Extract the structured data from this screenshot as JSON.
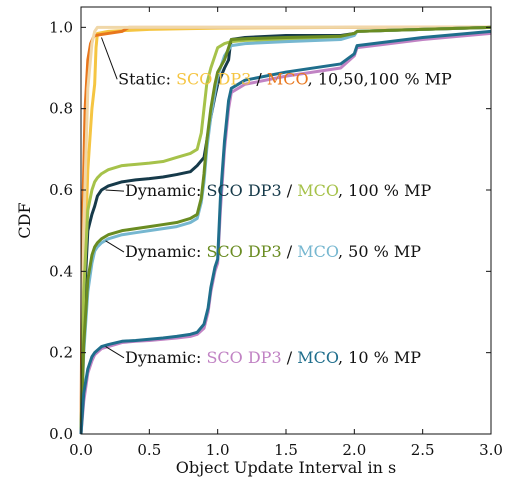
{
  "chart_data": {
    "type": "line",
    "xlabel": "Object Update Interval in s",
    "ylabel": "CDF",
    "xlim": [
      0.0,
      3.0
    ],
    "ylim": [
      0.0,
      1.05
    ],
    "xticks": [
      "0.0",
      "0.5",
      "1.0",
      "1.5",
      "2.0",
      "2.5",
      "3.0"
    ],
    "yticks": [
      "0.0",
      "0.2",
      "0.4",
      "0.6",
      "0.8",
      "1.0"
    ],
    "xtick_values": [
      0.0,
      0.5,
      1.0,
      1.5,
      2.0,
      2.5,
      3.0
    ],
    "ytick_values": [
      0.0,
      0.2,
      0.4,
      0.6,
      0.8,
      1.0
    ],
    "grid": false,
    "series": [
      {
        "key": "static_sco",
        "color": "#f5c542",
        "x": [
          0,
          0.02,
          0.05,
          0.08,
          0.1,
          0.11,
          0.12,
          0.2,
          0.5,
          1.0,
          1.5,
          2.0,
          3.0
        ],
        "y": [
          0.0,
          0.35,
          0.65,
          0.8,
          0.86,
          0.95,
          0.985,
          0.99,
          0.995,
          0.998,
          0.999,
          1.0,
          1.0
        ]
      },
      {
        "key": "static_mco",
        "color": "#e8761c",
        "x": [
          0,
          0.01,
          0.03,
          0.05,
          0.07,
          0.09,
          0.1,
          0.2,
          0.3,
          0.35,
          0.5,
          1.0,
          3.0
        ],
        "y": [
          0.0,
          0.5,
          0.8,
          0.92,
          0.96,
          0.975,
          0.98,
          0.985,
          0.99,
          1.0,
          1.0,
          1.0,
          1.0
        ]
      },
      {
        "key": "static_tan",
        "color": "#f0d7a8",
        "x": [
          0,
          0.02,
          0.05,
          0.08,
          0.1,
          0.12,
          0.5,
          1.0,
          2.0,
          3.0
        ],
        "y": [
          0.0,
          0.5,
          0.85,
          0.96,
          0.99,
          1.0,
          1.0,
          1.0,
          1.0,
          1.0
        ]
      },
      {
        "key": "dyn100_sco",
        "color": "#163a4a",
        "x": [
          0,
          0.02,
          0.05,
          0.08,
          0.1,
          0.12,
          0.15,
          0.2,
          0.3,
          0.4,
          0.5,
          0.6,
          0.7,
          0.8,
          0.85,
          0.9,
          0.92,
          0.95,
          0.98,
          1.0,
          1.05,
          1.08,
          1.09,
          1.1,
          1.2,
          1.5,
          1.9,
          2.0,
          2.02,
          2.5,
          2.9,
          3.0
        ],
        "y": [
          0.0,
          0.3,
          0.5,
          0.54,
          0.56,
          0.585,
          0.6,
          0.61,
          0.62,
          0.625,
          0.628,
          0.632,
          0.638,
          0.645,
          0.66,
          0.68,
          0.72,
          0.78,
          0.83,
          0.86,
          0.9,
          0.92,
          0.95,
          0.97,
          0.975,
          0.98,
          0.98,
          0.985,
          0.99,
          0.995,
          0.999,
          1.0
        ]
      },
      {
        "key": "dyn100_mco",
        "color": "#a6c24a",
        "x": [
          0,
          0.02,
          0.05,
          0.08,
          0.1,
          0.12,
          0.15,
          0.2,
          0.3,
          0.4,
          0.5,
          0.6,
          0.7,
          0.8,
          0.85,
          0.88,
          0.9,
          0.92,
          0.95,
          0.98,
          1.0,
          1.05,
          1.1,
          1.2,
          1.5,
          1.9,
          2.0,
          2.02,
          2.5,
          3.0
        ],
        "y": [
          0.0,
          0.35,
          0.55,
          0.6,
          0.62,
          0.63,
          0.64,
          0.65,
          0.66,
          0.663,
          0.666,
          0.67,
          0.68,
          0.69,
          0.7,
          0.74,
          0.8,
          0.86,
          0.9,
          0.93,
          0.95,
          0.96,
          0.965,
          0.968,
          0.97,
          0.975,
          0.985,
          0.99,
          0.995,
          1.0
        ]
      },
      {
        "key": "dyn50_mco",
        "color": "#76b7d0",
        "x": [
          0,
          0.02,
          0.05,
          0.08,
          0.1,
          0.12,
          0.15,
          0.2,
          0.3,
          0.4,
          0.5,
          0.6,
          0.7,
          0.8,
          0.85,
          0.88,
          0.9,
          0.92,
          0.95,
          0.98,
          1.0,
          1.05,
          1.1,
          1.2,
          1.5,
          1.9,
          2.0,
          2.02,
          2.5,
          3.0
        ],
        "y": [
          0.0,
          0.2,
          0.35,
          0.42,
          0.45,
          0.46,
          0.47,
          0.48,
          0.49,
          0.495,
          0.5,
          0.505,
          0.51,
          0.52,
          0.53,
          0.57,
          0.62,
          0.7,
          0.78,
          0.84,
          0.88,
          0.93,
          0.955,
          0.96,
          0.965,
          0.97,
          0.98,
          0.99,
          0.995,
          1.0
        ]
      },
      {
        "key": "dyn50_sco",
        "color": "#6a8c22",
        "x": [
          0,
          0.02,
          0.05,
          0.08,
          0.1,
          0.12,
          0.15,
          0.2,
          0.3,
          0.4,
          0.5,
          0.6,
          0.7,
          0.8,
          0.85,
          0.88,
          0.9,
          0.92,
          0.95,
          0.98,
          1.0,
          1.05,
          1.1,
          1.2,
          1.5,
          1.9,
          2.0,
          2.02,
          2.5,
          3.0
        ],
        "y": [
          0.0,
          0.22,
          0.38,
          0.44,
          0.46,
          0.47,
          0.48,
          0.49,
          0.5,
          0.505,
          0.51,
          0.515,
          0.52,
          0.53,
          0.54,
          0.58,
          0.64,
          0.72,
          0.8,
          0.86,
          0.89,
          0.92,
          0.97,
          0.972,
          0.975,
          0.978,
          0.985,
          0.99,
          0.995,
          1.0
        ]
      },
      {
        "key": "dyn10_sco",
        "color": "#c183c4",
        "x": [
          0,
          0.02,
          0.05,
          0.08,
          0.1,
          0.15,
          0.2,
          0.3,
          0.4,
          0.5,
          0.6,
          0.7,
          0.8,
          0.85,
          0.9,
          0.93,
          0.95,
          0.98,
          1.0,
          1.02,
          1.05,
          1.08,
          1.1,
          1.2,
          1.5,
          1.9,
          2.0,
          2.02,
          2.5,
          3.0
        ],
        "y": [
          0.0,
          0.08,
          0.15,
          0.18,
          0.195,
          0.21,
          0.215,
          0.225,
          0.228,
          0.23,
          0.233,
          0.236,
          0.24,
          0.245,
          0.26,
          0.3,
          0.35,
          0.4,
          0.42,
          0.55,
          0.7,
          0.8,
          0.84,
          0.86,
          0.88,
          0.9,
          0.93,
          0.95,
          0.97,
          0.985
        ]
      },
      {
        "key": "dyn10_mco",
        "color": "#1f6e8c",
        "x": [
          0,
          0.02,
          0.05,
          0.08,
          0.1,
          0.15,
          0.2,
          0.3,
          0.4,
          0.5,
          0.6,
          0.7,
          0.8,
          0.85,
          0.9,
          0.93,
          0.95,
          0.98,
          1.0,
          1.02,
          1.05,
          1.08,
          1.1,
          1.2,
          1.5,
          1.9,
          2.0,
          2.02,
          2.5,
          3.0
        ],
        "y": [
          0.0,
          0.1,
          0.16,
          0.19,
          0.2,
          0.215,
          0.22,
          0.228,
          0.23,
          0.233,
          0.236,
          0.24,
          0.245,
          0.25,
          0.27,
          0.31,
          0.36,
          0.41,
          0.43,
          0.58,
          0.72,
          0.82,
          0.85,
          0.87,
          0.89,
          0.91,
          0.935,
          0.955,
          0.975,
          0.99
        ]
      }
    ],
    "annotations": [
      {
        "key": "static",
        "anchor": [
          0.15,
          0.975
        ],
        "at": [
          0.25,
          0.86
        ],
        "parts": [
          {
            "text": "Static: ",
            "color": "#111111"
          },
          {
            "text": "SCO DP3",
            "color": "#f5c542"
          },
          {
            "text": " / ",
            "color": "#111111"
          },
          {
            "text": "MCO",
            "color": "#e8761c"
          },
          {
            "text": ", 10,50,100 % MP",
            "color": "#111111"
          }
        ]
      },
      {
        "key": "dyn100",
        "anchor": [
          0.18,
          0.6
        ],
        "at": [
          0.3,
          0.585
        ],
        "parts": [
          {
            "text": "Dynamic: ",
            "color": "#111111"
          },
          {
            "text": "SCO DP3",
            "color": "#163a4a"
          },
          {
            "text": " / ",
            "color": "#111111"
          },
          {
            "text": "MCO",
            "color": "#a6c24a"
          },
          {
            "text": ", 100 % MP",
            "color": "#111111"
          }
        ]
      },
      {
        "key": "dyn50",
        "anchor": [
          0.18,
          0.475
        ],
        "at": [
          0.3,
          0.435
        ],
        "parts": [
          {
            "text": "Dynamic: ",
            "color": "#111111"
          },
          {
            "text": "SCO DP3",
            "color": "#6a8c22"
          },
          {
            "text": " / ",
            "color": "#111111"
          },
          {
            "text": "MCO",
            "color": "#76b7d0"
          },
          {
            "text": ", 50 % MP",
            "color": "#111111"
          }
        ]
      },
      {
        "key": "dyn10",
        "anchor": [
          0.18,
          0.215
        ],
        "at": [
          0.3,
          0.175
        ],
        "parts": [
          {
            "text": "Dynamic: ",
            "color": "#111111"
          },
          {
            "text": "SCO DP3",
            "color": "#c183c4"
          },
          {
            "text": " / ",
            "color": "#111111"
          },
          {
            "text": "MCO",
            "color": "#1f6e8c"
          },
          {
            "text": ", 10 % MP",
            "color": "#111111"
          }
        ]
      }
    ]
  }
}
